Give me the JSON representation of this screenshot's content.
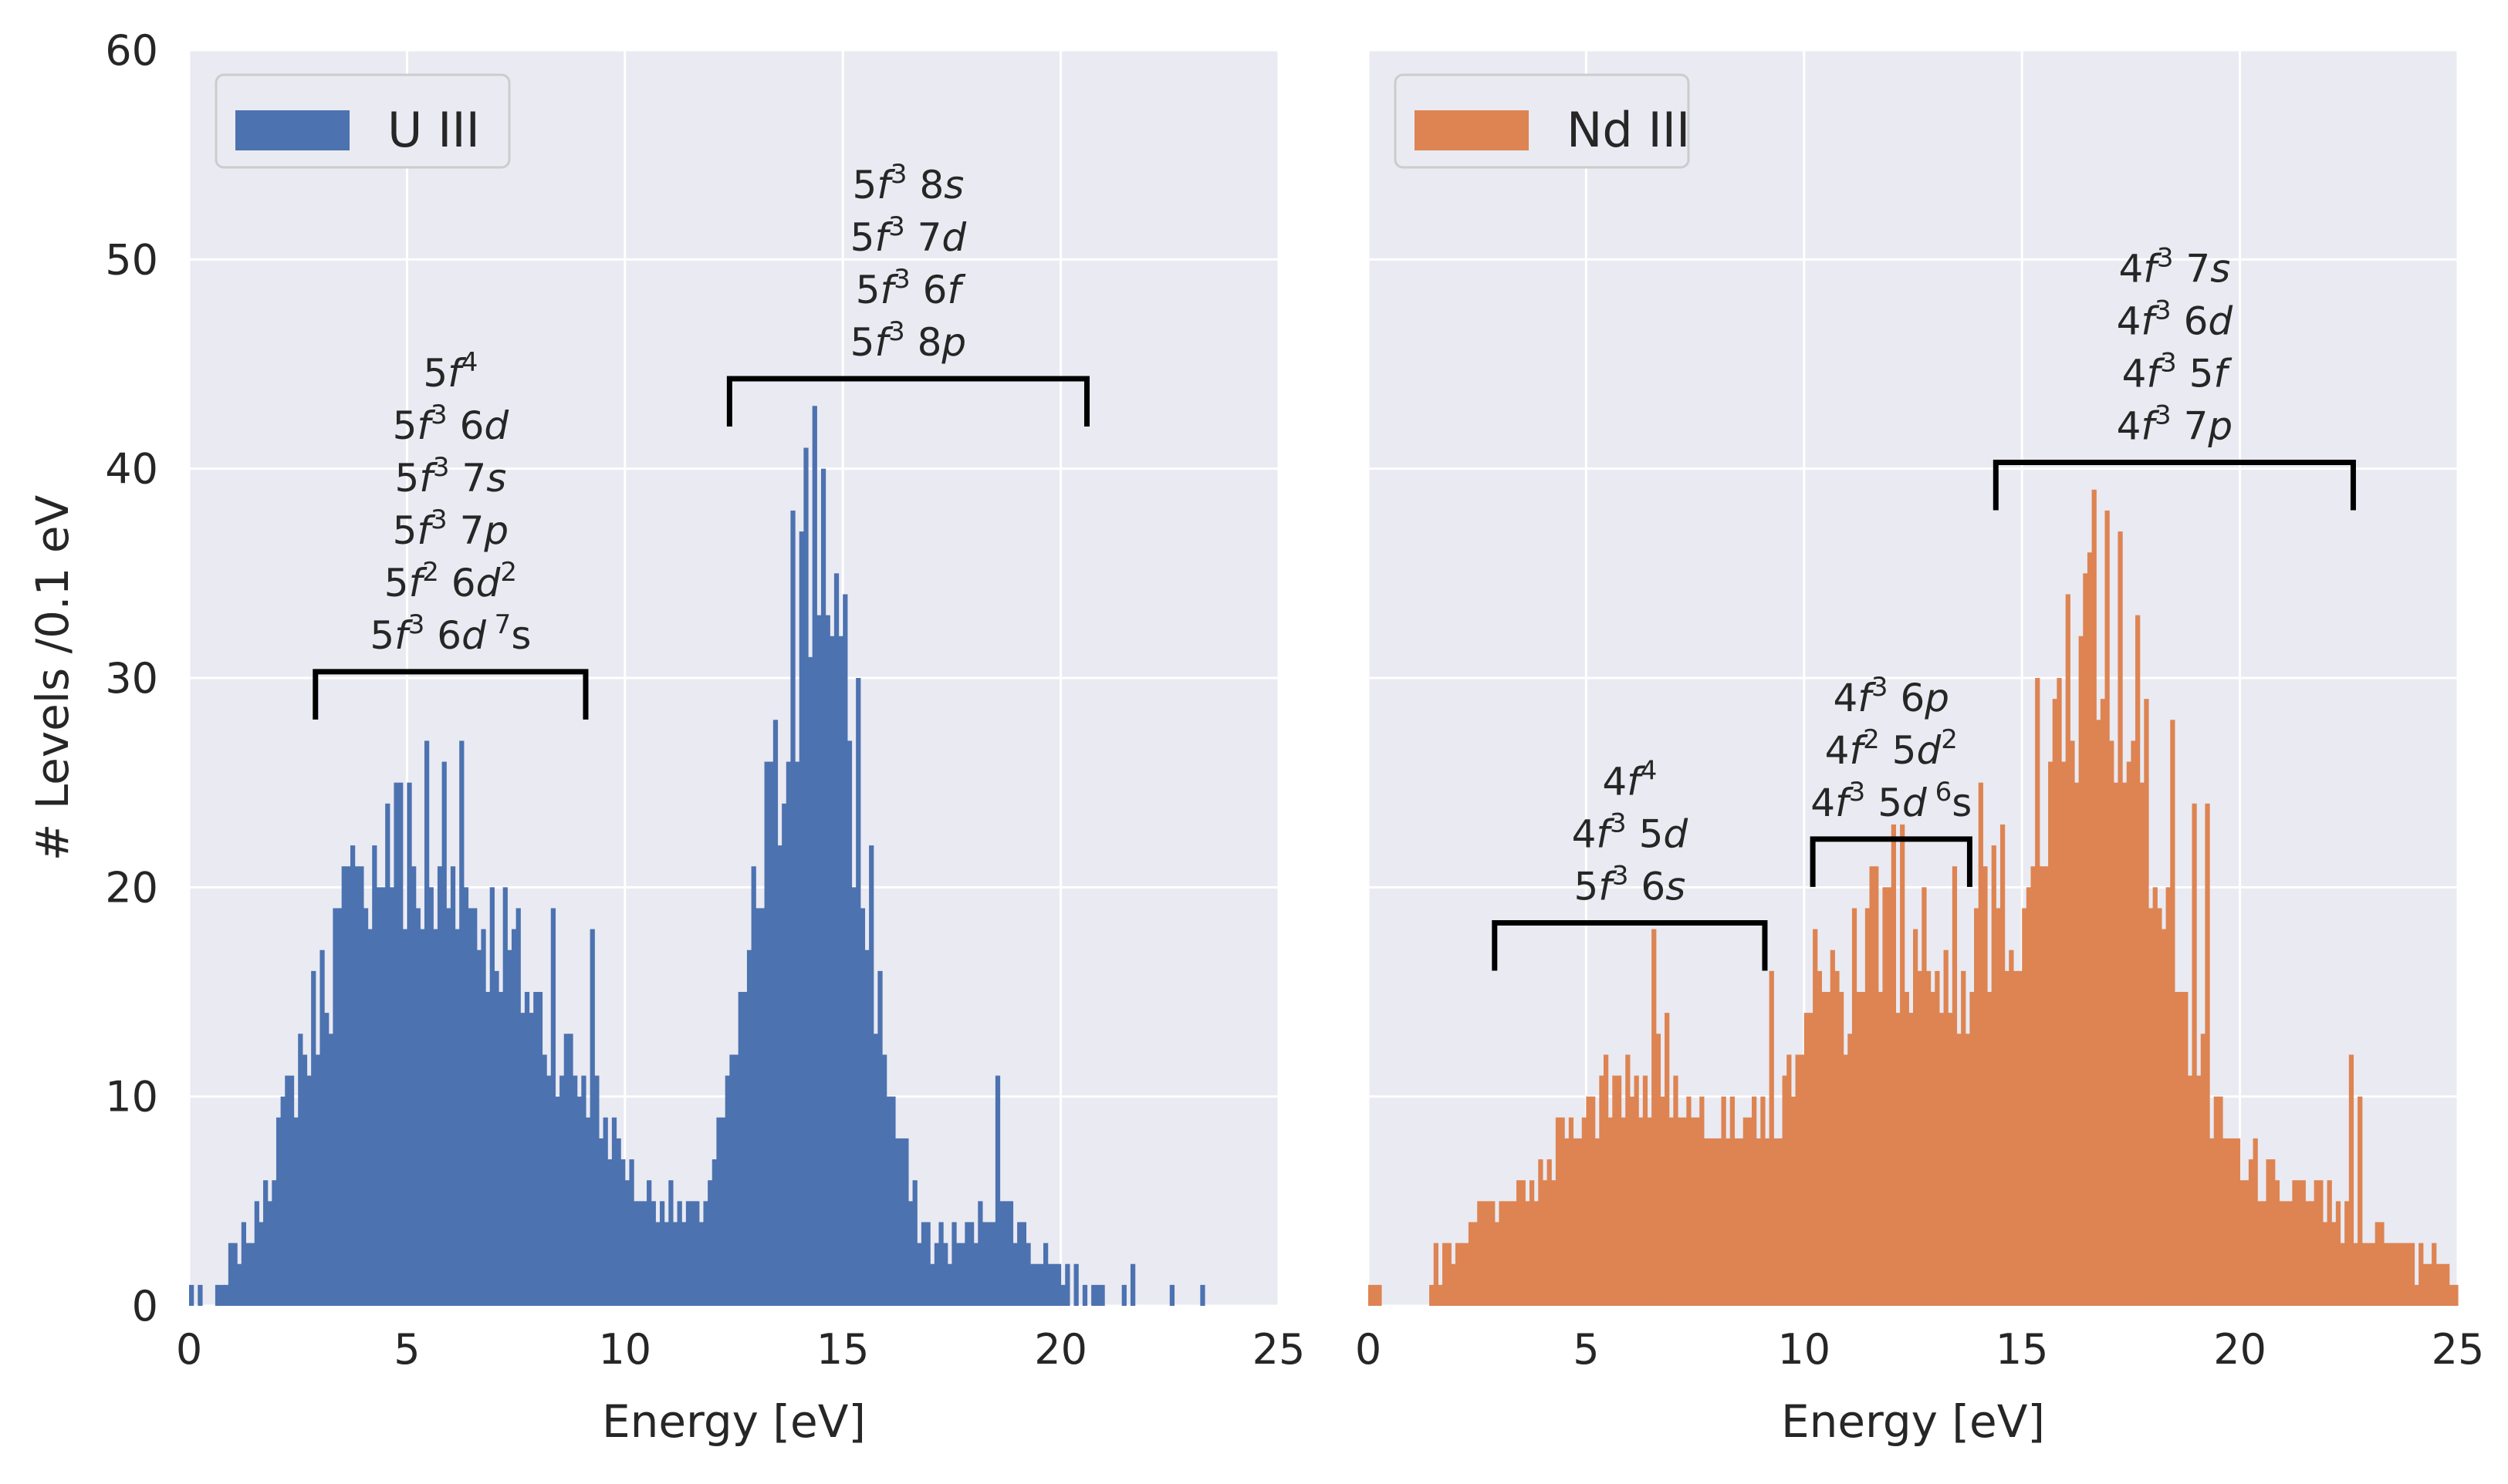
{
  "chart_data": [
    {
      "type": "histogram",
      "legend": "U III",
      "legend_position": "top-left",
      "color": "#4c72b0",
      "xlabel": "Energy [eV]",
      "ylabel": "# Levels /0.1 eV",
      "xlim": [
        0,
        25
      ],
      "ylim": [
        0,
        60
      ],
      "xticks": [
        "0",
        "5",
        "10",
        "15",
        "20",
        "25"
      ],
      "yticks": [
        "0",
        "10",
        "20",
        "30",
        "40",
        "50",
        "60"
      ],
      "bin_width": 0.1,
      "bin_start": 0,
      "anchors": [
        [
          0.0,
          1
        ],
        [
          0.5,
          0
        ],
        [
          0.8,
          1
        ],
        [
          1.1,
          3
        ],
        [
          1.5,
          4
        ],
        [
          1.9,
          7
        ],
        [
          2.3,
          10
        ],
        [
          2.7,
          12
        ],
        [
          3.0,
          15
        ],
        [
          3.5,
          18
        ],
        [
          4.0,
          20
        ],
        [
          4.5,
          22
        ],
        [
          5.0,
          21
        ],
        [
          5.5,
          19
        ],
        [
          6.0,
          20
        ],
        [
          6.5,
          19
        ],
        [
          7.0,
          18
        ],
        [
          7.5,
          16
        ],
        [
          8.0,
          14
        ],
        [
          8.5,
          12
        ],
        [
          9.0,
          11
        ],
        [
          9.5,
          9
        ],
        [
          10.0,
          7
        ],
        [
          10.5,
          5
        ],
        [
          11.0,
          5
        ],
        [
          11.5,
          4
        ],
        [
          11.8,
          5
        ],
        [
          12.0,
          7
        ],
        [
          12.3,
          9
        ],
        [
          12.6,
          13
        ],
        [
          13.0,
          19
        ],
        [
          13.3,
          22
        ],
        [
          13.6,
          26
        ],
        [
          13.9,
          30
        ],
        [
          14.2,
          34
        ],
        [
          14.4,
          37
        ],
        [
          14.7,
          31
        ],
        [
          15.0,
          27
        ],
        [
          15.3,
          23
        ],
        [
          15.6,
          18
        ],
        [
          15.9,
          13
        ],
        [
          16.2,
          9
        ],
        [
          16.6,
          5
        ],
        [
          17.0,
          3
        ],
        [
          17.4,
          3
        ],
        [
          17.8,
          3
        ],
        [
          18.2,
          4
        ],
        [
          18.6,
          5
        ],
        [
          19.0,
          4
        ],
        [
          19.4,
          3
        ],
        [
          19.8,
          2
        ],
        [
          20.3,
          1
        ],
        [
          20.8,
          1
        ],
        [
          21.3,
          1
        ],
        [
          21.7,
          1
        ],
        [
          22.0,
          0
        ],
        [
          25.0,
          0
        ]
      ],
      "overrides": [
        [
          5.4,
          27
        ],
        [
          5.8,
          26
        ],
        [
          6.2,
          27
        ],
        [
          4.5,
          24
        ],
        [
          4.8,
          25
        ],
        [
          5.0,
          25
        ],
        [
          3.9,
          21
        ],
        [
          3.3,
          19
        ],
        [
          2.5,
          13
        ],
        [
          9.2,
          18
        ],
        [
          8.3,
          19
        ],
        [
          7.4,
          18
        ],
        [
          14.3,
          43
        ],
        [
          14.1,
          41
        ],
        [
          13.8,
          38
        ],
        [
          14.5,
          40
        ],
        [
          14.0,
          37
        ],
        [
          15.0,
          34
        ],
        [
          14.8,
          35
        ],
        [
          15.3,
          30
        ],
        [
          12.6,
          15
        ],
        [
          13.2,
          26
        ],
        [
          15.6,
          22
        ],
        [
          18.5,
          11
        ],
        [
          22.5,
          1
        ],
        [
          23.2,
          1
        ]
      ],
      "annotations": [
        {
          "lines": [
            [
              "5",
              "f",
              "4",
              ""
            ],
            [
              "5",
              "f",
              "3",
              " 6",
              "d",
              ""
            ],
            [
              "5",
              "f",
              "3",
              " 7",
              "s",
              ""
            ],
            [
              "5",
              "f",
              "3",
              " 7",
              "p",
              ""
            ],
            [
              "5",
              "f",
              "2",
              " 6",
              "d",
              "2"
            ],
            [
              "5",
              "f",
              "3",
              " 6",
              "d",
              " 7",
              "s"
            ]
          ],
          "bracket": [
            2.9,
            9.1
          ],
          "y": 30.3
        },
        {
          "lines": [
            [
              "5",
              "f",
              "3",
              " 8",
              "s",
              ""
            ],
            [
              "5",
              "f",
              "3",
              " 7",
              "d",
              ""
            ],
            [
              "5",
              "f",
              "3",
              " 6",
              "f",
              ""
            ],
            [
              "5",
              "f",
              "3",
              " 8",
              "p",
              ""
            ]
          ],
          "bracket": [
            12.4,
            20.6
          ],
          "y": 44.3
        }
      ]
    },
    {
      "type": "histogram",
      "legend": "Nd III",
      "legend_position": "top-left",
      "color": "#dd8452",
      "xlabel": "Energy [eV]",
      "ylabel": "",
      "xlim": [
        0,
        25
      ],
      "ylim": [
        0,
        60
      ],
      "xticks": [
        "0",
        "5",
        "10",
        "15",
        "20",
        "25"
      ],
      "yticks": [],
      "bin_width": 0.1,
      "bin_start": 0,
      "anchors": [
        [
          0.0,
          1
        ],
        [
          0.5,
          0
        ],
        [
          1.4,
          0
        ],
        [
          1.5,
          2
        ],
        [
          2.0,
          3
        ],
        [
          2.5,
          4
        ],
        [
          3.0,
          5
        ],
        [
          3.5,
          6
        ],
        [
          4.0,
          6
        ],
        [
          4.5,
          8
        ],
        [
          5.0,
          9
        ],
        [
          5.5,
          10
        ],
        [
          6.0,
          10
        ],
        [
          6.5,
          11
        ],
        [
          7.0,
          10
        ],
        [
          7.5,
          10
        ],
        [
          8.0,
          9
        ],
        [
          8.5,
          9
        ],
        [
          9.0,
          8
        ],
        [
          9.5,
          10
        ],
        [
          10.0,
          12
        ],
        [
          10.5,
          14
        ],
        [
          11.0,
          15
        ],
        [
          11.5,
          17
        ],
        [
          12.0,
          18
        ],
        [
          12.5,
          17
        ],
        [
          13.0,
          16
        ],
        [
          13.5,
          15
        ],
        [
          14.0,
          17
        ],
        [
          14.5,
          19
        ],
        [
          15.0,
          20
        ],
        [
          15.5,
          23
        ],
        [
          16.0,
          27
        ],
        [
          16.4,
          31
        ],
        [
          16.7,
          32
        ],
        [
          17.0,
          30
        ],
        [
          17.4,
          27
        ],
        [
          17.8,
          23
        ],
        [
          18.2,
          19
        ],
        [
          18.6,
          15
        ],
        [
          19.0,
          12
        ],
        [
          19.5,
          9
        ],
        [
          20.0,
          7
        ],
        [
          20.5,
          6
        ],
        [
          21.0,
          6
        ],
        [
          21.5,
          5
        ],
        [
          22.0,
          5
        ],
        [
          22.5,
          4
        ],
        [
          23.0,
          3
        ],
        [
          23.5,
          3
        ],
        [
          24.0,
          2
        ],
        [
          24.5,
          2
        ],
        [
          25.0,
          1
        ]
      ],
      "overrides": [
        [
          16.6,
          39
        ],
        [
          16.9,
          38
        ],
        [
          17.2,
          37
        ],
        [
          16.4,
          35
        ],
        [
          17.6,
          33
        ],
        [
          15.3,
          30
        ],
        [
          16.0,
          34
        ],
        [
          17.8,
          29
        ],
        [
          18.4,
          28
        ],
        [
          15.7,
          29
        ],
        [
          14.0,
          25
        ],
        [
          12.0,
          23
        ],
        [
          12.2,
          23
        ],
        [
          11.6,
          21
        ],
        [
          13.4,
          21
        ],
        [
          6.5,
          18
        ],
        [
          6.8,
          14
        ],
        [
          9.2,
          16
        ],
        [
          10.2,
          18
        ],
        [
          18.9,
          24
        ],
        [
          19.2,
          24
        ],
        [
          22.5,
          12
        ],
        [
          22.7,
          10
        ],
        [
          14.5,
          23
        ]
      ],
      "annotations": [
        {
          "lines": [
            [
              "4",
              "f",
              "4",
              ""
            ],
            [
              "4",
              "f",
              "3",
              " 5",
              "d",
              ""
            ],
            [
              "5",
              "f",
              "3",
              " 6",
              "s",
              ""
            ]
          ],
          "bracket": [
            2.9,
            9.1
          ],
          "y": 18.3
        },
        {
          "lines": [
            [
              "4",
              "f",
              "3",
              " 6",
              "p",
              ""
            ],
            [
              "4",
              "f",
              "2",
              " 5",
              "d",
              "2"
            ],
            [
              "4",
              "f",
              "3",
              " 5",
              "d",
              " 6",
              "s"
            ]
          ],
          "bracket": [
            10.2,
            13.8
          ],
          "y": 22.3
        },
        {
          "lines": [
            [
              "4",
              "f",
              "3",
              " 7",
              "s",
              ""
            ],
            [
              "4",
              "f",
              "3",
              " 6",
              "d",
              ""
            ],
            [
              "4",
              "f",
              "3",
              " 5",
              "f",
              ""
            ],
            [
              "4",
              "f",
              "3",
              " 7",
              "p",
              ""
            ]
          ],
          "bracket": [
            14.4,
            22.6
          ],
          "y": 40.3
        }
      ]
    }
  ]
}
